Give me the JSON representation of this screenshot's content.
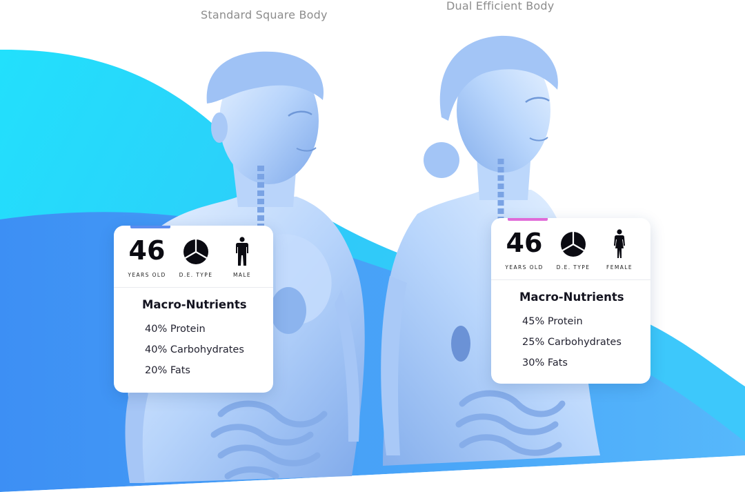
{
  "colors": {
    "wave_cyan": "#22dcfb",
    "wave_blue": "#3d9cf6",
    "male_accent": "#5b8def",
    "female_accent": "#e06ad8",
    "anatomy_light": "#cfe4ff",
    "anatomy_mid": "#8fbaf2",
    "anatomy_dark": "#5e8fd8"
  },
  "figures": [
    {
      "title": "Standard Square Body",
      "card": {
        "age": "46",
        "age_label": "YEARS OLD",
        "type_label": "D.E. TYPE",
        "type_icon": "pie-chart-icon",
        "gender_label": "MALE",
        "gender_icon": "male-body-icon",
        "macro_title": "Macro-Nutrients",
        "macros": [
          "40% Protein",
          "40% Carbohydrates",
          "20% Fats"
        ]
      }
    },
    {
      "title": "Dual Efficient Body",
      "card": {
        "age": "46",
        "age_label": "YEARS OLD",
        "type_label": "D.E. TYPE",
        "type_icon": "pie-chart-icon",
        "gender_label": "FEMALE",
        "gender_icon": "female-body-icon",
        "macro_title": "Macro-Nutrients",
        "macros": [
          "45% Protein",
          "25% Carbohydrates",
          "30% Fats"
        ]
      }
    }
  ]
}
